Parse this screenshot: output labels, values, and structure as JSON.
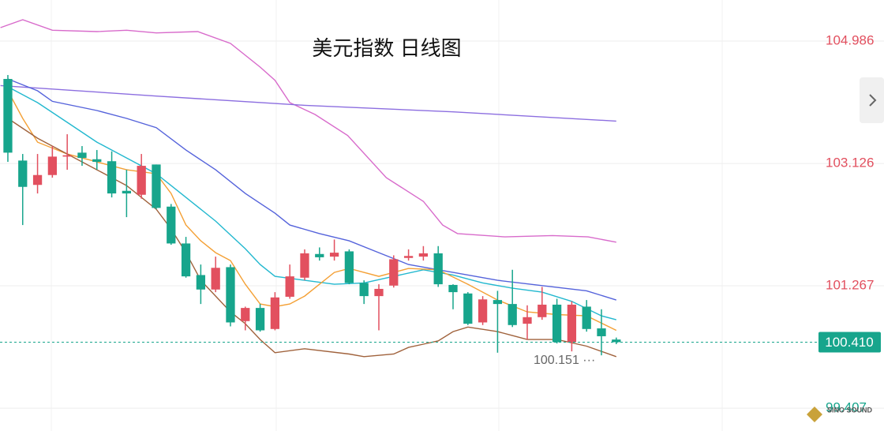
{
  "chart_data": {
    "type": "candlestick",
    "title": "美元指数 日线图",
    "x": [
      0,
      1,
      2,
      3,
      4,
      5,
      6,
      7,
      8,
      9,
      10,
      11,
      12,
      13,
      14,
      15,
      16,
      17,
      18,
      19,
      20,
      21,
      22,
      23,
      24,
      25,
      26,
      27,
      28,
      29,
      30,
      31,
      32,
      33,
      34,
      35,
      36,
      37,
      38,
      39,
      40,
      41
    ],
    "open": [
      104.41,
      103.17,
      102.8,
      102.95,
      103.23,
      103.29,
      103.19,
      103.16,
      102.71,
      102.65,
      103.11,
      102.47,
      101.91,
      101.43,
      101.21,
      101.55,
      100.73,
      100.93,
      100.61,
      101.1,
      101.39,
      101.75,
      101.71,
      101.79,
      101.31,
      101.11,
      101.27,
      101.69,
      101.71,
      101.76,
      101.28,
      101.15,
      100.71,
      101.05,
      100.99,
      100.69,
      100.79,
      100.98,
      100.41,
      100.95,
      100.62,
      100.45
    ],
    "close": [
      103.29,
      102.77,
      102.95,
      103.23,
      103.25,
      103.21,
      103.15,
      102.67,
      102.67,
      103.09,
      102.45,
      101.91,
      101.41,
      101.21,
      101.54,
      100.71,
      100.93,
      100.59,
      101.09,
      101.41,
      101.76,
      101.7,
      101.77,
      101.31,
      101.11,
      101.22,
      101.67,
      101.72,
      101.76,
      101.29,
      101.17,
      100.69,
      101.06,
      100.99,
      100.67,
      100.79,
      100.98,
      100.41,
      100.98,
      100.61,
      100.5,
      100.41
    ],
    "high": [
      104.47,
      103.27,
      103.27,
      103.39,
      103.57,
      103.39,
      103.33,
      103.31,
      103.03,
      103.27,
      103.11,
      102.51,
      102.01,
      101.59,
      101.71,
      101.59,
      100.95,
      100.99,
      101.17,
      101.59,
      101.82,
      101.85,
      101.97,
      101.82,
      101.35,
      101.29,
      101.73,
      101.82,
      101.87,
      101.87,
      101.29,
      101.17,
      101.11,
      101.19,
      101.51,
      100.97,
      101.25,
      101.07,
      101.03,
      101.05,
      100.91,
      100.48
    ],
    "low": [
      103.15,
      102.19,
      102.67,
      102.91,
      103.03,
      103.09,
      103.03,
      102.61,
      102.31,
      102.59,
      102.43,
      101.89,
      101.39,
      100.99,
      101.17,
      100.65,
      100.59,
      100.57,
      100.59,
      101.07,
      101.35,
      101.65,
      101.65,
      101.29,
      100.99,
      100.59,
      101.24,
      101.65,
      101.65,
      101.25,
      100.91,
      100.67,
      100.67,
      100.25,
      100.64,
      100.45,
      100.75,
      100.39,
      100.27,
      100.57,
      100.21,
      100.38
    ],
    "up_color": "#e2505f",
    "down_color": "#17a58c",
    "lines": [
      {
        "color": "#d86bcb",
        "x": [
          -0.5,
          1,
          3,
          6,
          8,
          10,
          12.8,
          15,
          17,
          18,
          19,
          20.7,
          22.9,
          25.5,
          28,
          29.3,
          30.3,
          33.5,
          36.7,
          39.1,
          41
        ],
        "values": [
          105.19,
          105.31,
          105.15,
          105.13,
          105.15,
          105.11,
          105.13,
          104.95,
          104.59,
          104.39,
          104.05,
          103.87,
          103.55,
          102.91,
          102.55,
          102.19,
          102.06,
          102.01,
          102.03,
          102.01,
          101.93
        ]
      },
      {
        "color": "#8c6ee0",
        "x": [
          -0.5,
          10,
          20,
          30,
          41
        ],
        "values": [
          104.31,
          104.15,
          104.01,
          103.91,
          103.77
        ]
      },
      {
        "color": "#5563db",
        "x": [
          0,
          2,
          3,
          6,
          8,
          10,
          12,
          14,
          16,
          18,
          19,
          21,
          23,
          25,
          27,
          30,
          33,
          36,
          39,
          41
        ],
        "values": [
          104.41,
          104.23,
          104.07,
          103.93,
          103.81,
          103.67,
          103.33,
          103.03,
          102.67,
          102.37,
          102.19,
          102.06,
          101.95,
          101.77,
          101.59,
          101.47,
          101.35,
          101.27,
          101.19,
          101.05
        ]
      },
      {
        "color": "#22b8cf",
        "x": [
          0,
          2,
          4,
          6,
          8,
          10,
          12,
          14,
          16,
          17,
          18,
          20,
          22,
          24,
          26,
          28,
          30,
          32,
          34,
          36,
          38,
          40,
          41
        ],
        "values": [
          104.29,
          104.05,
          103.75,
          103.45,
          103.21,
          102.97,
          102.61,
          102.25,
          101.83,
          101.59,
          101.41,
          101.35,
          101.29,
          101.31,
          101.41,
          101.51,
          101.43,
          101.31,
          101.23,
          101.17,
          101.03,
          100.81,
          100.75
        ]
      },
      {
        "color": "#f4a035",
        "x": [
          0,
          1,
          2,
          4,
          6,
          8,
          10,
          11,
          12,
          13,
          14,
          15,
          16,
          17,
          18,
          19,
          20,
          21,
          22,
          23,
          25,
          27,
          29,
          31,
          33,
          35,
          37,
          39,
          41
        ],
        "values": [
          104.23,
          103.81,
          103.45,
          103.27,
          103.15,
          103.03,
          102.97,
          102.67,
          102.19,
          101.95,
          101.77,
          101.65,
          101.29,
          100.99,
          100.95,
          100.99,
          101.11,
          101.29,
          101.47,
          101.53,
          101.41,
          101.53,
          101.51,
          101.29,
          101.05,
          100.87,
          100.83,
          100.81,
          100.59
        ]
      },
      {
        "color": "#a0623c",
        "x": [
          0,
          2,
          4,
          6,
          8,
          9,
          10,
          11,
          12,
          13,
          14,
          15,
          16,
          17,
          18,
          20,
          23,
          24,
          26,
          27,
          28,
          29,
          30,
          31,
          33,
          34,
          35,
          37,
          39,
          41
        ],
        "values": [
          103.81,
          103.51,
          103.27,
          103.03,
          102.79,
          102.61,
          102.43,
          102.13,
          101.77,
          101.35,
          101.11,
          100.87,
          100.69,
          100.45,
          100.25,
          100.31,
          100.23,
          100.19,
          100.23,
          100.33,
          100.38,
          100.43,
          100.57,
          100.64,
          100.57,
          100.51,
          100.45,
          100.45,
          100.35,
          100.19
        ]
      }
    ],
    "xlim": [
      -0.53,
      54.52
    ],
    "ylim": [
      99.06,
      105.61
    ],
    "yticks": [
      104.986,
      103.126,
      101.267,
      99.407
    ],
    "grid": true,
    "last_price": {
      "value": 100.41,
      "label": "100.410"
    },
    "annotation": "100.151 ···",
    "watermark": "SINO SOUND"
  }
}
